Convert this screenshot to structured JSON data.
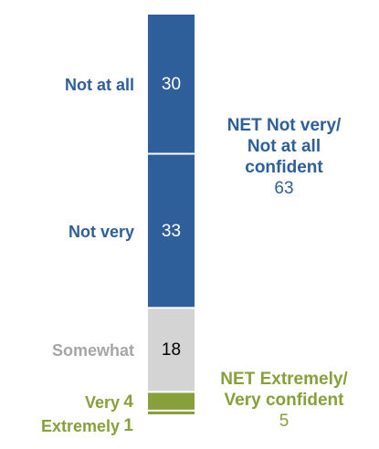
{
  "chart_data": {
    "type": "bar",
    "stacked": true,
    "orientation": "vertical",
    "segments": [
      {
        "label": "Not at all",
        "value": 30,
        "value_label": "30",
        "color": "#2e5f9a",
        "label_color": "#2e5f9a",
        "value_color": "#ffffff"
      },
      {
        "label": "Not very",
        "value": 33,
        "value_label": "33",
        "color": "#2e5f9a",
        "label_color": "#2e5f9a",
        "value_color": "#ffffff"
      },
      {
        "label": "Somewhat",
        "value": 18,
        "value_label": "18",
        "color": "#d4d4d4",
        "label_color": "#a6a6a6",
        "value_color": "#000000"
      },
      {
        "label": "Very",
        "value": 4,
        "value_label": "4",
        "color": "#87a03a",
        "label_color": "#87a03a",
        "value_color": "#87a03a"
      },
      {
        "label": "Extremely",
        "value": 1,
        "value_label": "1",
        "color": "#87a03a",
        "label_color": "#87a03a",
        "value_color": "#87a03a"
      }
    ],
    "nets": [
      {
        "lines": [
          "NET Not very/",
          "Not at all",
          "confident"
        ],
        "value": "63",
        "color": "#2e5f9a"
      },
      {
        "lines": [
          "NET Extremely/",
          "Very confident"
        ],
        "value": "5",
        "color": "#87a03a"
      }
    ]
  }
}
